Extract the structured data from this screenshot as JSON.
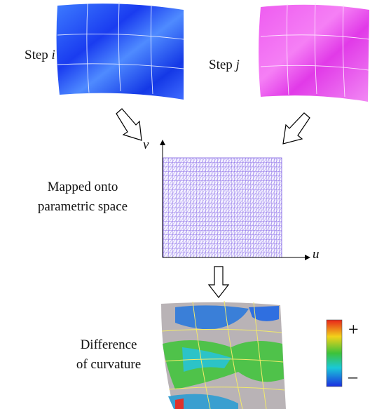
{
  "step_i": {
    "word": "Step",
    "var": "i"
  },
  "step_j": {
    "word": "Step",
    "var": "j"
  },
  "axes": {
    "v": "v",
    "u": "u"
  },
  "mapped": {
    "lines": [
      "Mapped onto",
      "parametric space"
    ]
  },
  "difference": {
    "lines": [
      "Difference",
      "of curvature"
    ]
  },
  "colorbar": {
    "plus": "+",
    "minus": "–"
  }
}
